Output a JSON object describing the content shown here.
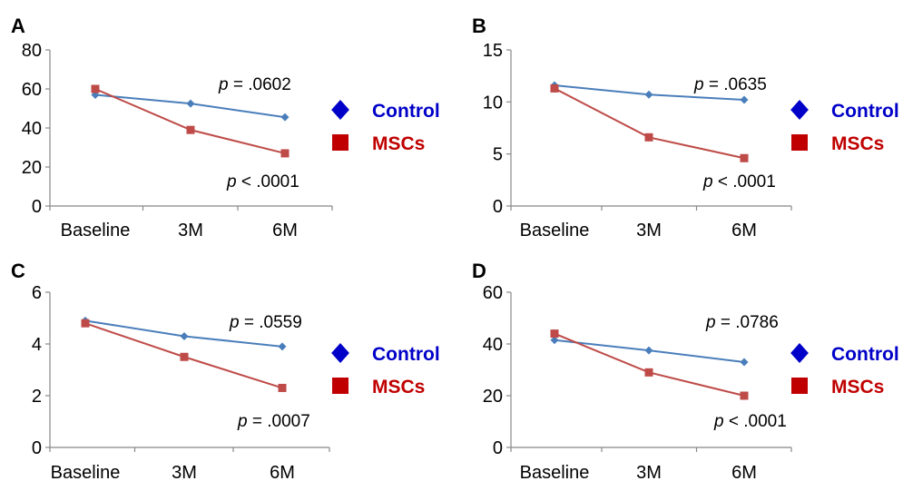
{
  "colors": {
    "control_line": "#4a7ebb",
    "msc_line": "#be4b48",
    "control_marker": "#4a7ebb",
    "msc_marker": "#be4b48",
    "legend_control": "#0000c8",
    "legend_msc": "#c00000",
    "axis": "#888888"
  },
  "chart_data": [
    {
      "panel": "A",
      "type": "line",
      "categories": [
        "Baseline",
        "3M",
        "6M"
      ],
      "ylim": [
        0,
        80
      ],
      "yticks": [
        0,
        20,
        40,
        60,
        80
      ],
      "series": [
        {
          "name": "Control",
          "values": [
            57,
            52.5,
            45.5
          ],
          "marker": "diamond"
        },
        {
          "name": "MSCs",
          "values": [
            60,
            39,
            27
          ],
          "marker": "square"
        }
      ],
      "annotations": {
        "control_p": ".0602",
        "control_op": "=",
        "msc_p": ".0001",
        "msc_op": "<"
      },
      "grid": false,
      "legend_position": "right"
    },
    {
      "panel": "B",
      "type": "line",
      "categories": [
        "Baseline",
        "3M",
        "6M"
      ],
      "ylim": [
        0,
        15
      ],
      "yticks": [
        0,
        5,
        10,
        15
      ],
      "series": [
        {
          "name": "Control",
          "values": [
            11.6,
            10.7,
            10.2
          ],
          "marker": "diamond"
        },
        {
          "name": "MSCs",
          "values": [
            11.3,
            6.6,
            4.6
          ],
          "marker": "square"
        }
      ],
      "annotations": {
        "control_p": ".0635",
        "control_op": "=",
        "msc_p": ".0001",
        "msc_op": "<"
      },
      "grid": false,
      "legend_position": "right"
    },
    {
      "panel": "C",
      "type": "line",
      "categories": [
        "Baseline",
        "3M",
        "6M"
      ],
      "ylim": [
        0,
        6
      ],
      "yticks": [
        0,
        2,
        4,
        6
      ],
      "series": [
        {
          "name": "Control",
          "values": [
            4.9,
            4.3,
            3.9
          ],
          "marker": "diamond"
        },
        {
          "name": "MSCs",
          "values": [
            4.8,
            3.5,
            2.3
          ],
          "marker": "square"
        }
      ],
      "annotations": {
        "control_p": ".0559",
        "control_op": "=",
        "msc_p": ".0007",
        "msc_op": "="
      },
      "grid": false,
      "legend_position": "right"
    },
    {
      "panel": "D",
      "type": "line",
      "categories": [
        "Baseline",
        "3M",
        "6M"
      ],
      "ylim": [
        0,
        60
      ],
      "yticks": [
        0,
        20,
        40,
        60
      ],
      "series": [
        {
          "name": "Control",
          "values": [
            41.5,
            37.5,
            33
          ],
          "marker": "diamond"
        },
        {
          "name": "MSCs",
          "values": [
            44,
            29,
            20
          ],
          "marker": "square"
        }
      ],
      "annotations": {
        "control_p": ".0786",
        "control_op": "=",
        "msc_p": ".0001",
        "msc_op": "<"
      },
      "grid": false,
      "legend_position": "right"
    }
  ],
  "legend": {
    "control_label": "Control",
    "msc_label": "MSCs",
    "p_symbol": "p"
  }
}
